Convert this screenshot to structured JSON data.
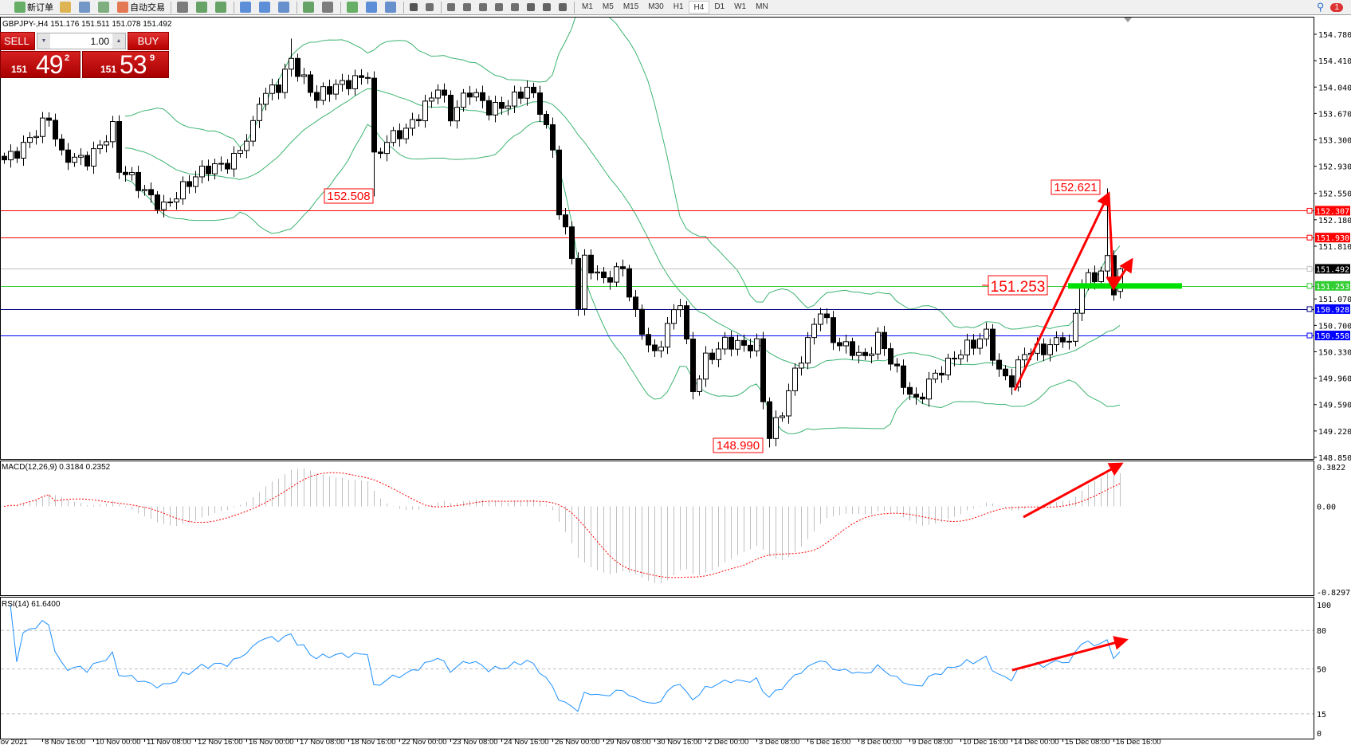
{
  "toolbar": {
    "new_order": "新订单",
    "auto_trading": "自动交易",
    "icons": [
      "new-order-icon",
      "metaeditor-icon",
      "market-watch-icon",
      "signals-icon",
      "auto-trading-icon",
      "bar-chart-icon",
      "candlestick-icon",
      "line-chart-icon",
      "zoom-in-icon",
      "zoom-out-icon",
      "tile-windows-icon",
      "autoscroll-icon",
      "chart-shift-icon",
      "indicators-icon",
      "periods-icon",
      "templates-icon",
      "cursor-icon",
      "crosshair-icon",
      "vertical-line-icon",
      "horizontal-line-icon",
      "trendline-icon",
      "fibonacci-icon",
      "equidistant-channel-icon",
      "text-icon",
      "text-label-icon",
      "arrows-icon"
    ],
    "timeframes": [
      "M1",
      "M5",
      "M15",
      "M30",
      "H1",
      "H4",
      "D1",
      "W1",
      "MN"
    ],
    "active_timeframe": "H4",
    "notification_count": "1"
  },
  "chart_header": "GBPJPY-,H4  151.176 151.511 151.078 151.492",
  "trade_panel": {
    "sell_label": "SELL",
    "buy_label": "BUY",
    "lot": "1.00",
    "sell_price": {
      "prefix": "151",
      "big": "49",
      "sup": "2"
    },
    "buy_price": {
      "prefix": "151",
      "big": "53",
      "sup": "9"
    }
  },
  "chart_data": {
    "type": "candlestick",
    "symbol": "GBPJPY-",
    "timeframe": "H4",
    "last_bar": {
      "open": 151.176,
      "high": 151.511,
      "low": 151.078,
      "close": 151.492
    },
    "close_anchors": [
      [
        0,
        153.02
      ],
      [
        5,
        153.44
      ],
      [
        7,
        153.56
      ],
      [
        9,
        153.02
      ],
      [
        13,
        153.08
      ],
      [
        17,
        153.44
      ],
      [
        18,
        152.84
      ],
      [
        22,
        152.59
      ],
      [
        25,
        152.41
      ],
      [
        29,
        152.65
      ],
      [
        32,
        152.9
      ],
      [
        36,
        153.08
      ],
      [
        39,
        153.44
      ],
      [
        40,
        153.81
      ],
      [
        43,
        154.05
      ],
      [
        45,
        154.48
      ],
      [
        47,
        154.17
      ],
      [
        49,
        153.87
      ],
      [
        53,
        154.05
      ],
      [
        57,
        154.29
      ],
      [
        58,
        153.08
      ],
      [
        60,
        153.26
      ],
      [
        63,
        153.38
      ],
      [
        66,
        153.81
      ],
      [
        68,
        154.11
      ],
      [
        70,
        153.63
      ],
      [
        73,
        153.93
      ],
      [
        76,
        153.75
      ],
      [
        79,
        153.87
      ],
      [
        82,
        153.99
      ],
      [
        84,
        153.69
      ],
      [
        86,
        153.14
      ],
      [
        87,
        152.35
      ],
      [
        89,
        151.74
      ],
      [
        90,
        151.01
      ],
      [
        91,
        151.62
      ],
      [
        94,
        151.26
      ],
      [
        97,
        151.5
      ],
      [
        99,
        150.89
      ],
      [
        102,
        150.28
      ],
      [
        104,
        150.64
      ],
      [
        106,
        151.01
      ],
      [
        108,
        149.8
      ],
      [
        110,
        150.28
      ],
      [
        113,
        150.47
      ],
      [
        116,
        150.34
      ],
      [
        118,
        150.41
      ],
      [
        119,
        149.68
      ],
      [
        120,
        149.2
      ],
      [
        122,
        149.56
      ],
      [
        124,
        150.04
      ],
      [
        126,
        150.41
      ],
      [
        128,
        150.89
      ],
      [
        130,
        150.53
      ],
      [
        133,
        150.41
      ],
      [
        135,
        150.22
      ],
      [
        137,
        150.47
      ],
      [
        140,
        150.04
      ],
      [
        143,
        149.68
      ],
      [
        145,
        149.92
      ],
      [
        148,
        150.1
      ],
      [
        151,
        150.41
      ],
      [
        154,
        150.64
      ],
      [
        156,
        150.04
      ],
      [
        158,
        149.86
      ],
      [
        160,
        150.28
      ],
      [
        163,
        150.41
      ],
      [
        166,
        150.59
      ],
      [
        167,
        150.41
      ],
      [
        169,
        151.26
      ],
      [
        171,
        151.32
      ],
      [
        173,
        151.62
      ],
      [
        174,
        151.26
      ],
      [
        175,
        151.492
      ]
    ],
    "extremes": [
      {
        "bar": 45,
        "high": 154.72
      },
      {
        "bar": 58,
        "low": 152.508
      },
      {
        "bar": 120,
        "low": 148.99
      },
      {
        "bar": 173,
        "high": 152.621
      }
    ],
    "price_axis": {
      "ticks": [
        154.78,
        154.41,
        154.04,
        153.67,
        153.3,
        152.93,
        152.55,
        152.18,
        151.81,
        151.07,
        150.7,
        150.33,
        149.96,
        149.59,
        149.22,
        148.85
      ],
      "range": [
        148.85,
        154.78
      ]
    },
    "time_axis": {
      "labels": [
        "Nov 2021",
        "8 Nov 16:00",
        "10 Nov 00:00",
        "11 Nov 08:00",
        "12 Nov 16:00",
        "16 Nov 00:00",
        "17 Nov 08:00",
        "18 Nov 16:00",
        "22 Nov 00:00",
        "23 Nov 08:00",
        "24 Nov 16:00",
        "26 Nov 00:00",
        "29 Nov 08:00",
        "30 Nov 16:00",
        "2 Dec 00:00",
        "3 Dec 08:00",
        "6 Dec 16:00",
        "8 Dec 00:00",
        "9 Dec 08:00",
        "10 Dec 16:00",
        "14 Dec 00:00",
        "15 Dec 08:00",
        "16 Dec 16:00"
      ]
    },
    "levels": [
      {
        "price": 152.307,
        "label": "152.307",
        "color": "#ff0000",
        "label_bg": "#ff0000"
      },
      {
        "price": 151.93,
        "label": "151.930",
        "color": "#ff0000",
        "label_bg": "#ff0000"
      },
      {
        "price": 151.492,
        "label": "151.492",
        "color": "#c0c0c0",
        "label_bg": "#000000"
      },
      {
        "price": 151.253,
        "label": "151.253",
        "color": "#32cd32",
        "label_bg": "#32cd32"
      },
      {
        "price": 150.928,
        "label": "150.928",
        "color": "#000080",
        "label_bg": "#0000ff"
      },
      {
        "price": 150.558,
        "label": "150.558",
        "color": "#0000ff",
        "label_bg": "#0000ff"
      }
    ],
    "annotations": [
      {
        "text": "152.508",
        "price": 152.508
      },
      {
        "text": "148.990",
        "price": 148.99
      },
      {
        "text": "152.621",
        "price": 152.621
      },
      {
        "text": "151.253",
        "price": 151.253
      }
    ],
    "bollinger": {
      "color": "#3cb371"
    },
    "macd": {
      "label": "MACD(12,26,9) 0.3184 0.2352",
      "ticks": [
        "0.3822",
        "0.00",
        "-0.8297"
      ],
      "range": [
        -0.8297,
        0.3822
      ],
      "hist_color": "#c0c0c0",
      "signal_color": "#ff0000"
    },
    "rsi": {
      "label": "RSI(14) 61.6400",
      "ticks": [
        "100",
        "80",
        "50",
        "15",
        "0"
      ],
      "levels": [
        80,
        50,
        15
      ],
      "color": "#1e90ff"
    },
    "colors": {
      "arrow": "#ff0000",
      "up_body": "#ffffff",
      "down_body": "#000000"
    }
  }
}
